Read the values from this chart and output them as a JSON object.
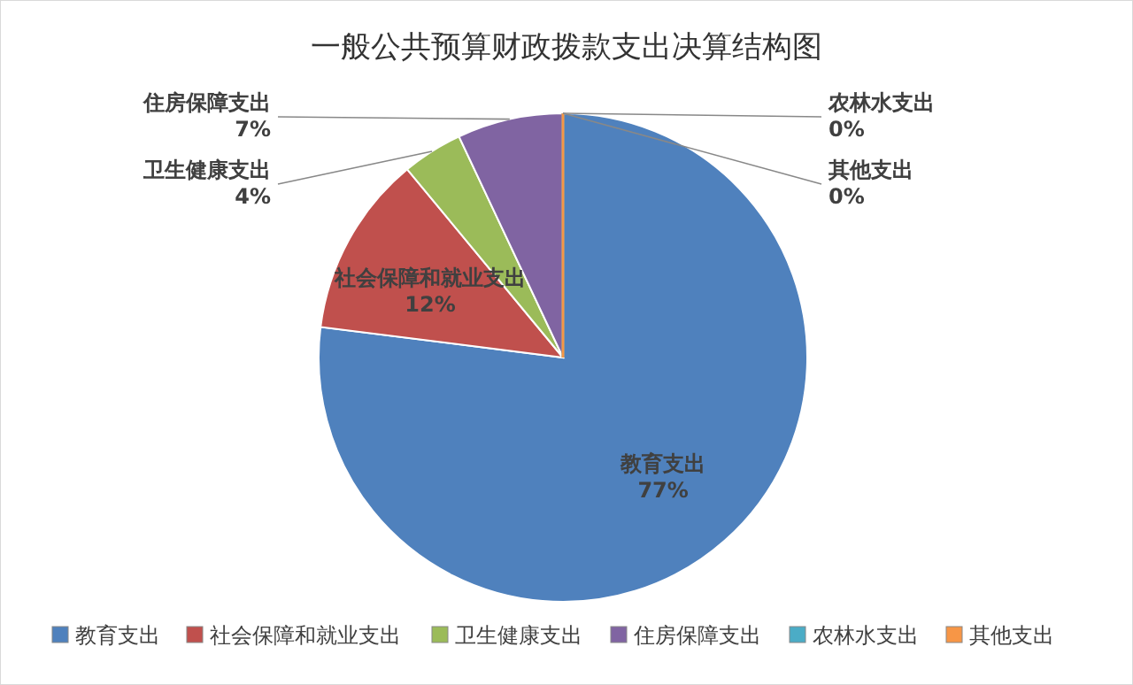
{
  "chart_data": {
    "type": "pie",
    "title": "一般公共预算财政拨款支出决算结构图",
    "categories": [
      "教育支出",
      "社会保障和就业支出",
      "卫生健康支出",
      "住房保障支出",
      "农林水支出",
      "其他支出"
    ],
    "values": [
      77,
      12,
      4,
      7,
      0,
      0
    ],
    "colors": [
      "#4f81bd",
      "#c0504d",
      "#9bbb59",
      "#8064a2",
      "#4bacc6",
      "#f79646"
    ],
    "value_labels": [
      "77%",
      "12%",
      "4%",
      "7%",
      "0%",
      "0%"
    ],
    "legend": "bottom"
  }
}
